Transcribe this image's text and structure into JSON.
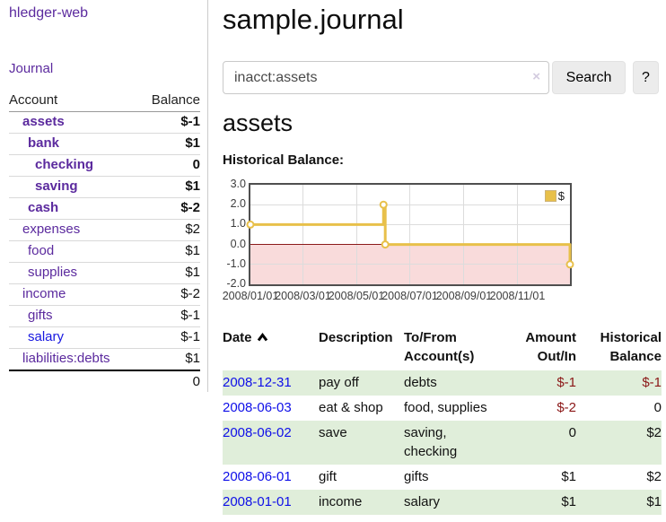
{
  "sidebar": {
    "brand": "hledger-web",
    "nav": {
      "journal": "Journal"
    },
    "accounts_table": {
      "headers": {
        "account": "Account",
        "balance": "Balance"
      },
      "rows": [
        {
          "label": "assets",
          "balance": "$-1"
        },
        {
          "label": "bank",
          "balance": "$1"
        },
        {
          "label": "checking",
          "balance": "0"
        },
        {
          "label": "saving",
          "balance": "$1"
        },
        {
          "label": "cash",
          "balance": "$-2"
        },
        {
          "label": "expenses",
          "balance": "$2"
        },
        {
          "label": "food",
          "balance": "$1"
        },
        {
          "label": "supplies",
          "balance": "$1"
        },
        {
          "label": "income",
          "balance": "$-2"
        },
        {
          "label": "gifts",
          "balance": "$-1"
        },
        {
          "label": "salary",
          "balance": "$-1"
        },
        {
          "label": "liabilities:debts",
          "balance": "$1"
        }
      ],
      "total": "0"
    }
  },
  "header": {
    "title": "sample.journal"
  },
  "search": {
    "query": "inacct:assets",
    "clear_icon": "×",
    "search_label": "Search",
    "help_label": "?"
  },
  "account_view": {
    "heading": "assets",
    "chart_label": "Historical Balance:"
  },
  "chart_data": {
    "type": "line",
    "title": "Historical Balance",
    "series": [
      {
        "name": "$",
        "color": "#e8c04a",
        "points": [
          [
            0,
            1
          ],
          [
            152,
            2
          ],
          [
            154,
            0
          ],
          [
            365,
            -1
          ]
        ],
        "point_dates": [
          "2008-01-01",
          "2008-06-01",
          "2008-06-03",
          "2008-12-31"
        ]
      }
    ],
    "step": true,
    "x_max": 365,
    "x_tick_labels": [
      "2008/01/01",
      "2008/03/01",
      "2008/05/01",
      "2008/07/01",
      "2008/09/01",
      "2008/11/01"
    ],
    "x_tick_pos": [
      0,
      60,
      121,
      182,
      244,
      305
    ],
    "y_ticks": [
      3.0,
      2.0,
      1.0,
      0.0,
      -1.0,
      -2.0
    ],
    "ylim": [
      -2,
      3
    ],
    "grid": true,
    "legend_position": "top-right",
    "negative_region_color": "#f9dbdb",
    "zero_line_color": "#8b1a1a"
  },
  "register_table": {
    "headers": {
      "date": "Date",
      "description": "Description",
      "accounts": "To/From Account(s)",
      "amount": "Amount Out/In",
      "balance": "Historical Balance"
    },
    "rows": [
      {
        "date": "2008-12-31",
        "description": "pay off",
        "accounts": "debts",
        "amount": "$-1",
        "balance": "$-1"
      },
      {
        "date": "2008-06-03",
        "description": "eat & shop",
        "accounts": "food, supplies",
        "amount": "$-2",
        "balance": "0"
      },
      {
        "date": "2008-06-02",
        "description": "save",
        "accounts": "saving, checking",
        "amount": "0",
        "balance": "$2"
      },
      {
        "date": "2008-06-01",
        "description": "gift",
        "accounts": "gifts",
        "amount": "$1",
        "balance": "$2"
      },
      {
        "date": "2008-01-01",
        "description": "income",
        "accounts": "salary",
        "amount": "$1",
        "balance": "$1"
      }
    ]
  },
  "colors": {
    "link_purple": "#5b2a9e",
    "link_blue": "#1717e0",
    "date_blue": "#0f0fe8",
    "negative_strong": "#8b1717",
    "negative_faded": "#bb6b6b",
    "stripe_green": "#e0eeda",
    "chart_gold": "#e8c04a",
    "chart_negative_region": "#f9dbdb",
    "zero_line": "#8b1a1a"
  }
}
